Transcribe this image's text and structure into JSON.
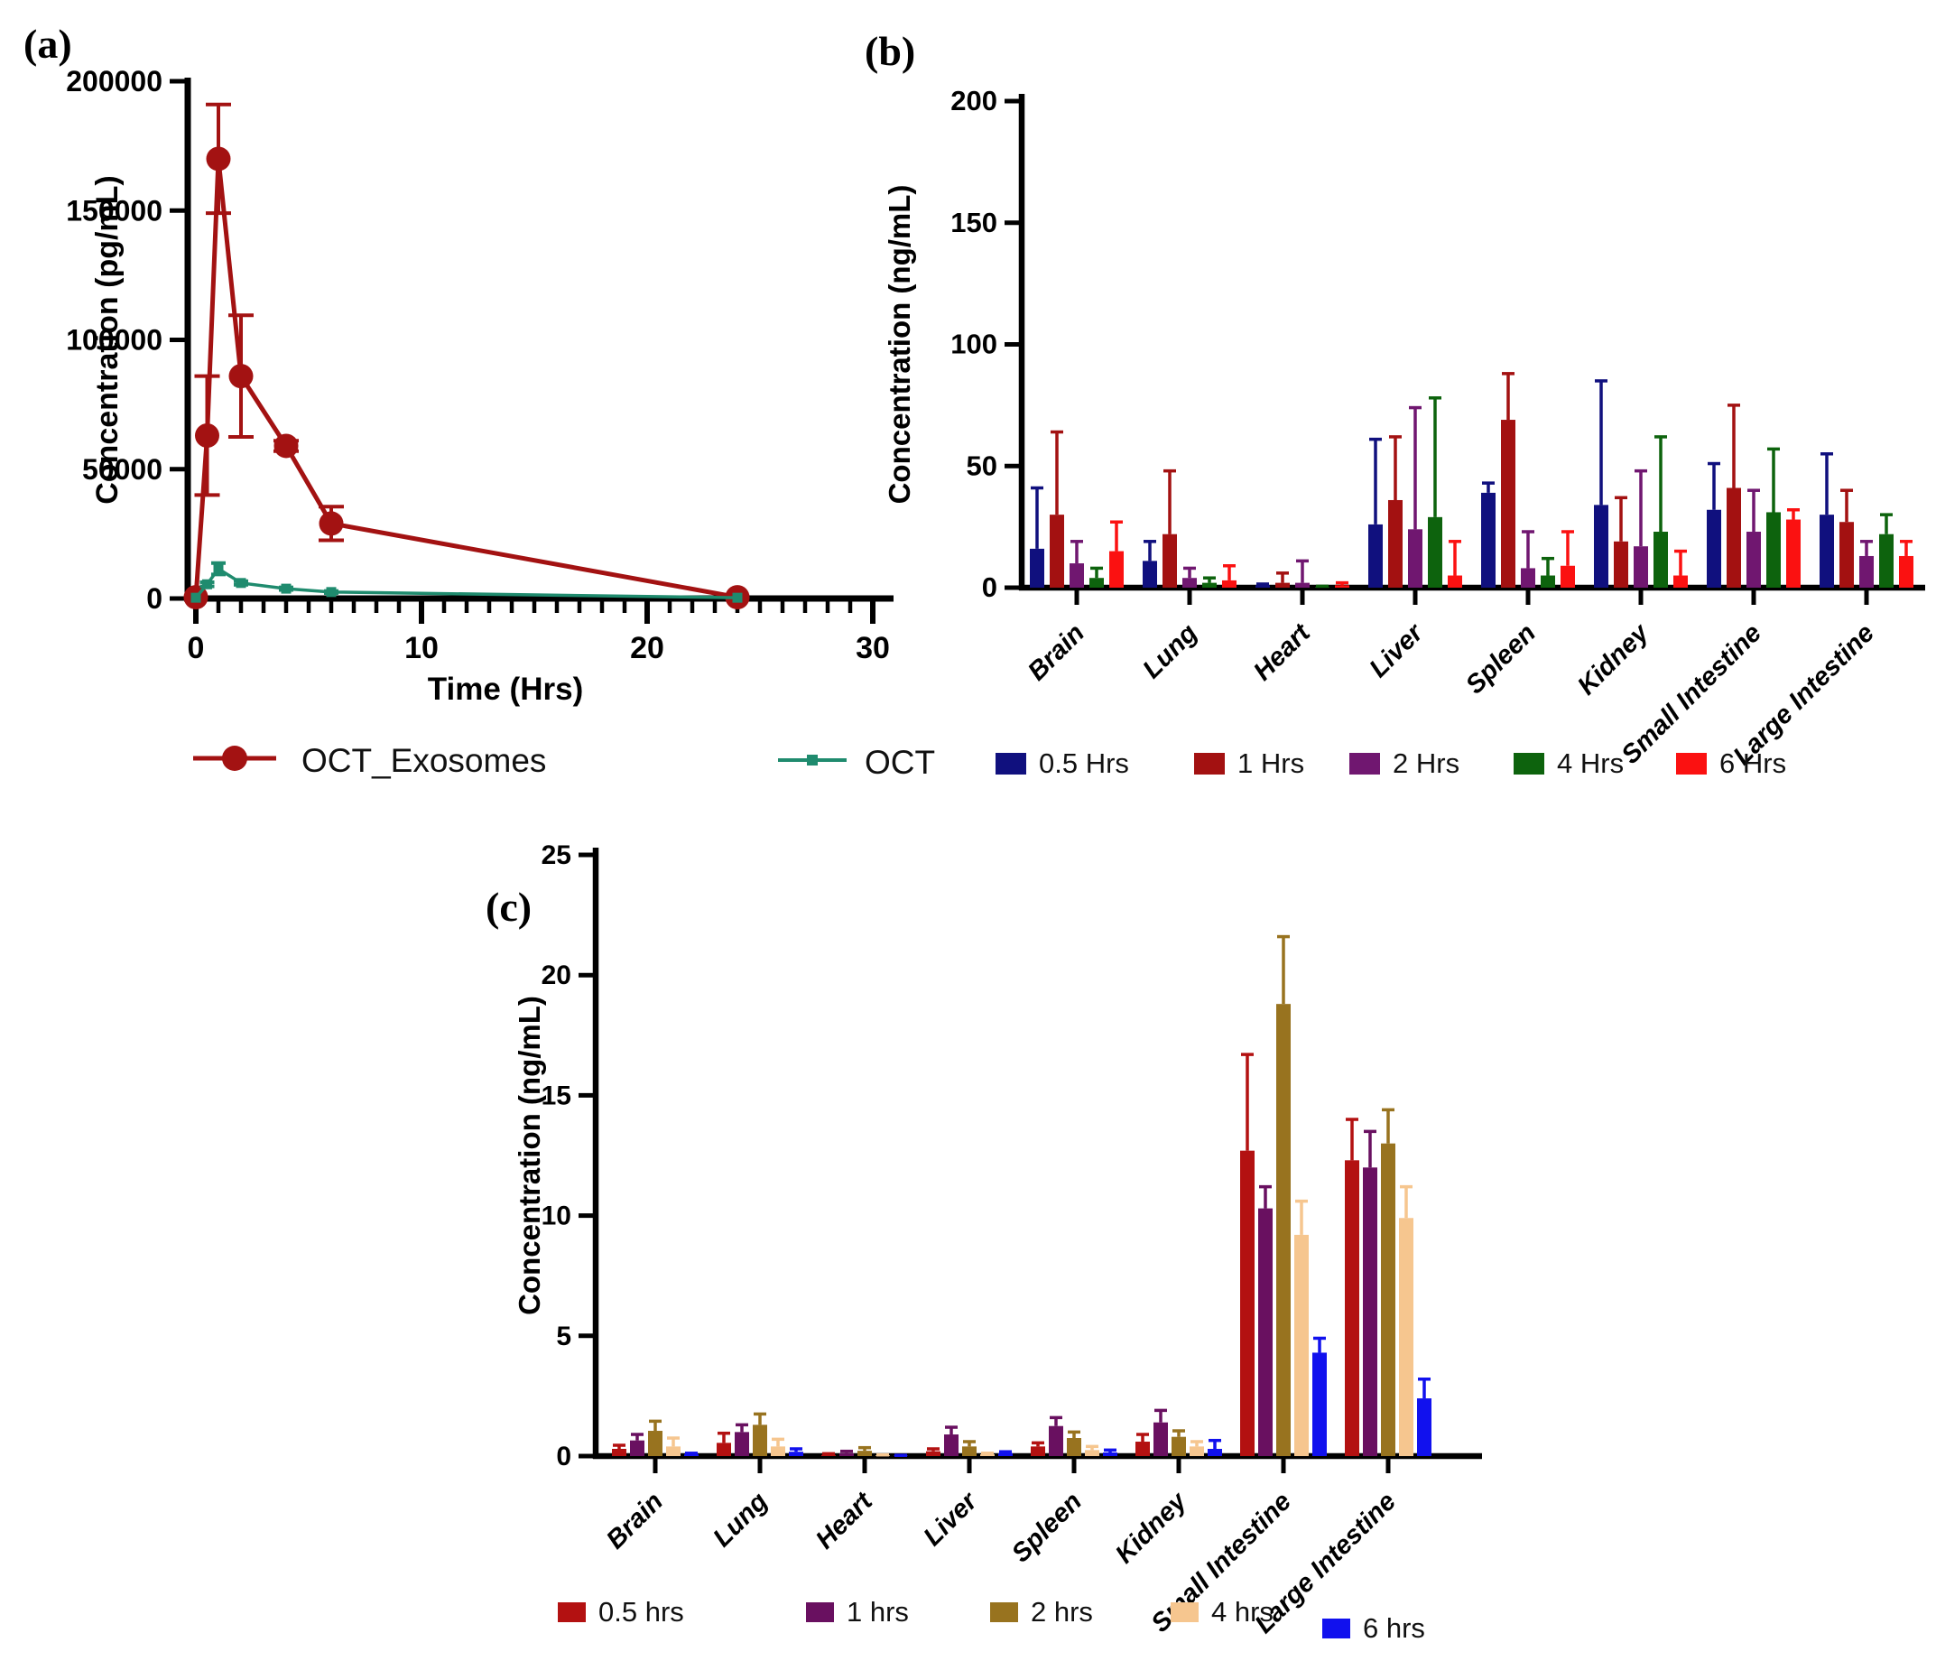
{
  "figure": {
    "background": "#FFFFFF",
    "axis_color": "#000000",
    "panels": [
      {
        "label": "(a)"
      },
      {
        "label": "(b)"
      },
      {
        "label": "(c)"
      }
    ]
  },
  "chart_data": [
    {
      "id": "a",
      "type": "line",
      "panel_label": "(a)",
      "xlabel": "Time (Hrs)",
      "ylabel": "Concentration (pg/mL)",
      "xlim": [
        0,
        30
      ],
      "xticks": [
        0,
        10,
        20,
        30
      ],
      "x_minor_step": 1,
      "ylim": [
        0,
        200000
      ],
      "yticks": [
        0,
        50000,
        100000,
        150000,
        200000
      ],
      "legend_position": "bottom",
      "series": [
        {
          "name": "OCT_Exosomes",
          "color": "#A31212",
          "marker": "circle",
          "x": [
            0,
            0.5,
            1,
            2,
            4,
            6,
            24
          ],
          "y": [
            500,
            63000,
            170000,
            86000,
            59000,
            29000,
            500
          ],
          "err": [
            0,
            23000,
            21000,
            23500,
            2000,
            6500,
            0
          ]
        },
        {
          "name": "OCT",
          "color": "#1F8B6E",
          "marker": "square",
          "x": [
            0,
            0.5,
            1,
            2,
            4,
            6,
            24
          ],
          "y": [
            300,
            5500,
            11500,
            6000,
            3800,
            2500,
            300
          ],
          "err": [
            0,
            800,
            2200,
            700,
            500,
            400,
            0
          ]
        }
      ]
    },
    {
      "id": "b",
      "type": "bar",
      "panel_label": "(b)",
      "xlabel": "",
      "ylabel": "Concentration (ng/mL)",
      "ylim": [
        0,
        200
      ],
      "yticks": [
        0,
        50,
        100,
        150,
        200
      ],
      "legend_position": "bottom",
      "categories": [
        "Brain",
        "Lung",
        "Heart",
        "Liver",
        "Spleen",
        "Kidney",
        "Small Intestine",
        "Large Intestine"
      ],
      "series": [
        {
          "name": "0.5 Hrs",
          "color": "#10107E",
          "values": [
            16,
            11,
            1,
            26,
            39,
            34,
            32,
            30
          ],
          "errors_top": [
            41,
            19,
            1.5,
            61,
            43,
            85,
            51,
            55
          ]
        },
        {
          "name": "1 Hrs",
          "color": "#A31111",
          "values": [
            30,
            22,
            2,
            36,
            69,
            19,
            41,
            27
          ],
          "errors_top": [
            64,
            48,
            6,
            62,
            88,
            37,
            75,
            40
          ]
        },
        {
          "name": "2 Hrs",
          "color": "#701770",
          "values": [
            10,
            4,
            2,
            24,
            8,
            17,
            23,
            13
          ],
          "errors_top": [
            19,
            8,
            11,
            74,
            23,
            48,
            40,
            19
          ]
        },
        {
          "name": "4 Hrs",
          "color": "#0D630D",
          "values": [
            4,
            2,
            0.3,
            29,
            5,
            23,
            31,
            22
          ],
          "errors_top": [
            8,
            4,
            0.6,
            78,
            12,
            62,
            57,
            30
          ]
        },
        {
          "name": "6 Hrs",
          "color": "#FB1111",
          "values": [
            15,
            3,
            1,
            5,
            9,
            5,
            28,
            13
          ],
          "errors_top": [
            27,
            9,
            2,
            19,
            23,
            15,
            32,
            19
          ]
        }
      ]
    },
    {
      "id": "c",
      "type": "bar",
      "panel_label": "(c)",
      "xlabel": "",
      "ylabel": "Concentration (ng/mL)",
      "ylim": [
        0,
        25
      ],
      "yticks": [
        0,
        5,
        10,
        15,
        20,
        25
      ],
      "legend_position": "bottom",
      "categories": [
        "Brain",
        "Lung",
        "Heart",
        "Liver",
        "Spleen",
        "Kidney",
        "Small Intestine",
        "Large Intestine"
      ],
      "series": [
        {
          "name": "0.5 hrs",
          "color": "#B31111",
          "values": [
            0.3,
            0.55,
            0.05,
            0.2,
            0.4,
            0.6,
            12.7,
            12.3
          ],
          "errors_top": [
            0.45,
            0.95,
            0.1,
            0.3,
            0.55,
            0.9,
            16.7,
            14.0
          ]
        },
        {
          "name": "1 hrs",
          "color": "#691060",
          "values": [
            0.65,
            1.0,
            0.12,
            0.9,
            1.25,
            1.4,
            10.3,
            12.0
          ],
          "errors_top": [
            0.9,
            1.3,
            0.2,
            1.2,
            1.6,
            1.9,
            11.2,
            13.5
          ]
        },
        {
          "name": "2 hrs",
          "color": "#98731F",
          "values": [
            1.05,
            1.3,
            0.22,
            0.4,
            0.75,
            0.8,
            18.8,
            13.0
          ],
          "errors_top": [
            1.45,
            1.75,
            0.35,
            0.6,
            1.0,
            1.05,
            21.6,
            14.4
          ]
        },
        {
          "name": "4 hrs",
          "color": "#F6C68F",
          "values": [
            0.4,
            0.4,
            0.03,
            0.08,
            0.25,
            0.4,
            9.2,
            9.9
          ],
          "errors_top": [
            0.75,
            0.7,
            0.05,
            0.12,
            0.4,
            0.6,
            10.6,
            11.2
          ]
        },
        {
          "name": "6 hrs",
          "color": "#1111EE",
          "values": [
            0.08,
            0.18,
            0.02,
            0.12,
            0.15,
            0.3,
            4.3,
            2.4
          ],
          "errors_top": [
            0.12,
            0.3,
            0.03,
            0.18,
            0.25,
            0.65,
            4.9,
            3.2
          ]
        }
      ]
    }
  ]
}
